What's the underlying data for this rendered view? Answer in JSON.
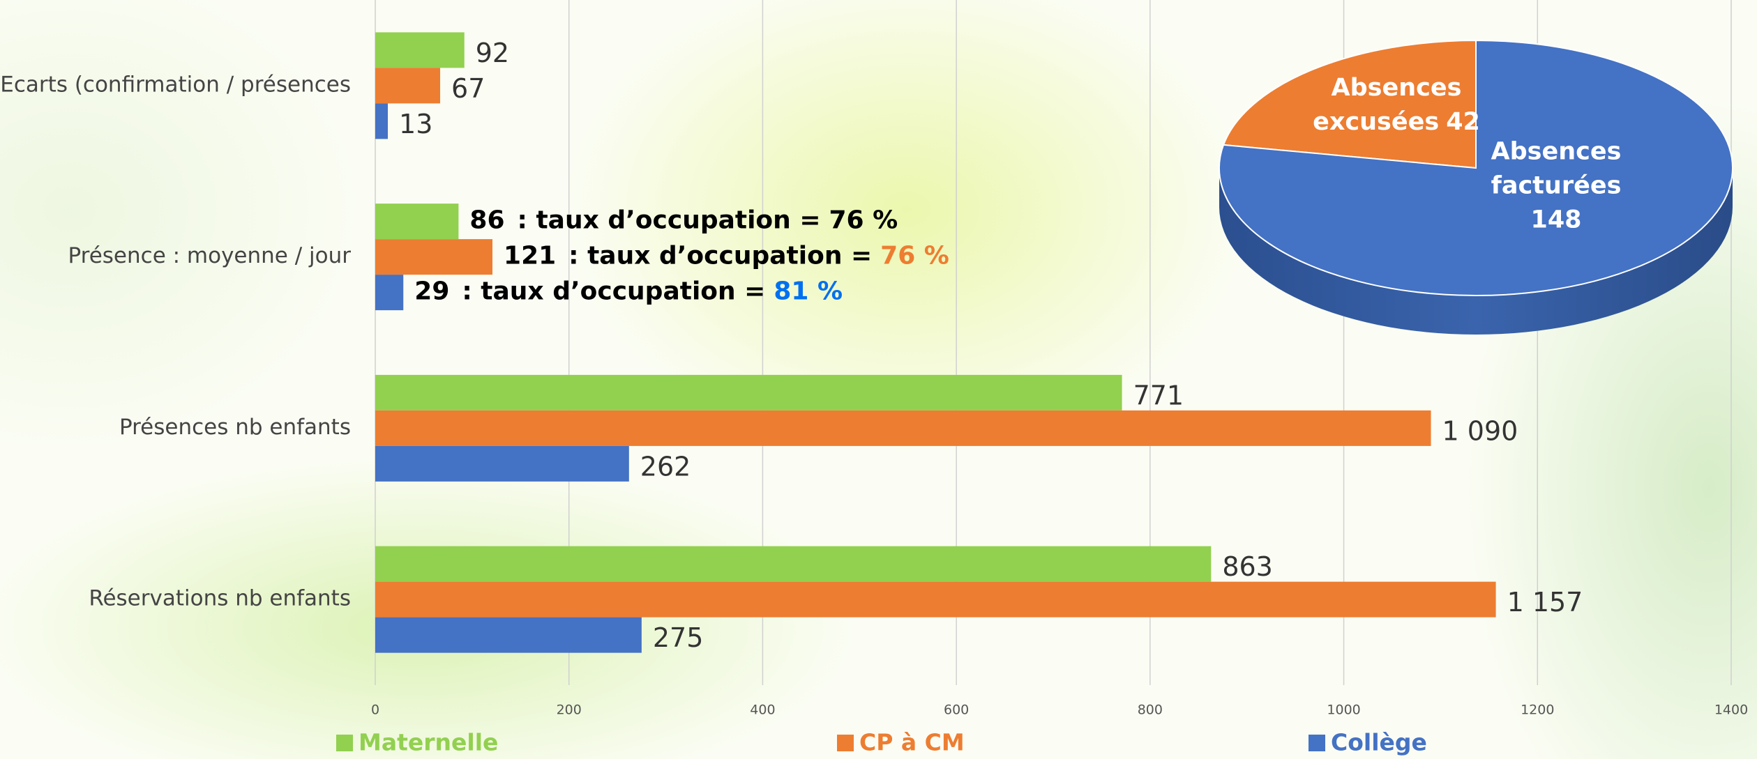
{
  "chart_data": [
    {
      "type": "hbar",
      "categories": [
        "Ecarts (confirmation / présences",
        "Présence : moyenne / jour",
        "Présences nb enfants",
        "Réservations nb enfants"
      ],
      "series": [
        {
          "name": "Maternelle",
          "color": "#92d050",
          "values": [
            92,
            86,
            771,
            863
          ],
          "value_labels": [
            "92",
            "86",
            "771",
            "863"
          ],
          "occupancy": [
            null,
            "76 %",
            null,
            null
          ],
          "occupancy_color": "#000000"
        },
        {
          "name": "CP à CM",
          "color": "#ed7d31",
          "values": [
            67,
            121,
            1090,
            1157
          ],
          "value_labels": [
            "67",
            "121",
            "1 090",
            "1 157"
          ],
          "occupancy": [
            null,
            "76 %",
            null,
            null
          ],
          "occupancy_color": "#ed7d31"
        },
        {
          "name": "Collège",
          "color": "#4472c4",
          "values": [
            13,
            29,
            262,
            275
          ],
          "value_labels": [
            "13",
            "29",
            "262",
            "275"
          ],
          "occupancy": [
            null,
            "81 %",
            null,
            null
          ],
          "occupancy_color": "#0070f0"
        }
      ],
      "occupancy_text": ": taux d’occupation =",
      "xlim": [
        0,
        1400
      ],
      "xticks": [
        0,
        200,
        400,
        600,
        800,
        1000,
        1200,
        1400
      ],
      "grid": true,
      "legend": "bottom"
    },
    {
      "type": "pie3d",
      "labels": [
        "Absences excusées",
        "Absences facturées"
      ],
      "values": [
        42,
        148
      ],
      "colors": [
        "#ed7d31",
        "#4472c4"
      ]
    }
  ]
}
